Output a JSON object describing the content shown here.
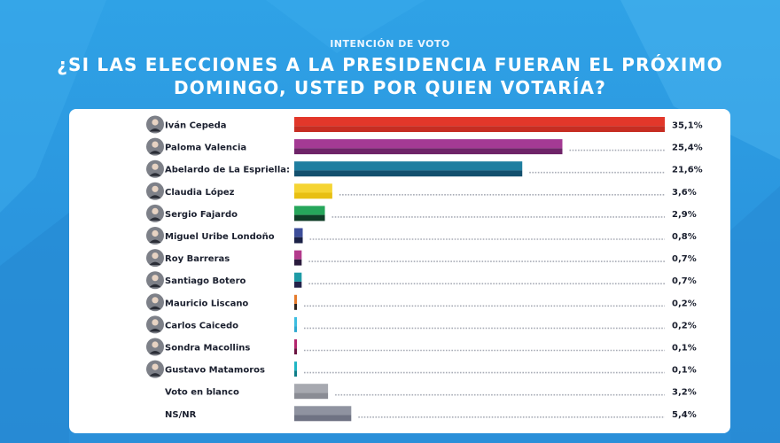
{
  "header": {
    "kicker": "INTENCIÓN DE VOTO",
    "title_line1": "¿SI LAS ELECCIONES A LA PRESIDENCIA FUERAN EL PRÓXIMO",
    "title_line2": "DOMINGO, USTED POR QUIEN VOTARÍA?"
  },
  "chart_data": {
    "type": "bar",
    "orientation": "horizontal",
    "grid": false,
    "legend": "none",
    "xlim": [
      0,
      35.1
    ],
    "categories": [
      "Iván Cepeda",
      "Paloma Valencia",
      "Abelardo de La Espriella:",
      "Claudia López",
      "Sergio Fajardo",
      "Miguel Uribe Londoño",
      "Roy Barreras",
      "Santiago Botero",
      "Mauricio Liscano",
      "Carlos Caicedo",
      "Sondra Macollins",
      "Gustavo Matamoros",
      "Voto en blanco",
      "NS/NR"
    ],
    "values": [
      35.1,
      25.4,
      21.6,
      3.6,
      2.9,
      0.8,
      0.7,
      0.7,
      0.2,
      0.2,
      0.1,
      0.1,
      3.2,
      5.4
    ],
    "value_labels": [
      "35,1%",
      "25,4%",
      "21,6%",
      "3,6%",
      "2,9%",
      "0,8%",
      "0,7%",
      "0,7%",
      "0,2%",
      "0,2%",
      "0,1%",
      "0,1%",
      "3,2%",
      "5,4%"
    ],
    "has_avatar": [
      true,
      true,
      true,
      true,
      true,
      true,
      true,
      true,
      true,
      true,
      true,
      true,
      false,
      false
    ],
    "bar_colors": [
      [
        "#e2372a",
        "#c62d22"
      ],
      [
        "#a43a94",
        "#6e2368"
      ],
      [
        "#1f7ea0",
        "#13506e"
      ],
      [
        "#f5d433",
        "#e8bf12"
      ],
      [
        "#26a65b",
        "#0f3d27"
      ],
      [
        "#3d4e9a",
        "#1b2146"
      ],
      [
        "#b33a8c",
        "#2a1a3c"
      ],
      [
        "#1e9ba6",
        "#23224a"
      ],
      [
        "#e57b2c",
        "#2f2520"
      ],
      [
        "#3dbde0",
        "#2da8d0"
      ],
      [
        "#b3266e",
        "#6a1240"
      ],
      [
        "#1fb5c4",
        "#0e7d88"
      ],
      [
        "#a7a9b0",
        "#8a8c94"
      ],
      [
        "#8f93a0",
        "#6f7383"
      ]
    ]
  }
}
